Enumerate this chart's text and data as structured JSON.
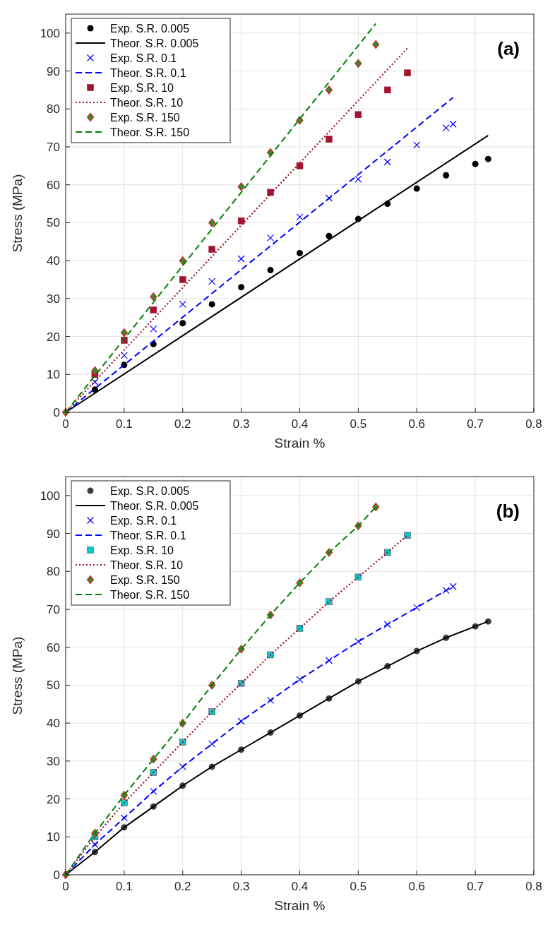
{
  "chart_data": [
    {
      "type": "line",
      "xlabel": "Strain %",
      "ylabel": "Stress (MPa)",
      "xlim": [
        0,
        0.8
      ],
      "ylim": [
        0,
        105
      ],
      "xticks": [
        0,
        0.1,
        0.2,
        0.3,
        0.4,
        0.5,
        0.6,
        0.7,
        0.8
      ],
      "yticks": [
        0,
        10,
        20,
        30,
        40,
        50,
        60,
        70,
        80,
        90,
        100
      ],
      "grid": true,
      "legend": "top left",
      "annotations": [
        "(a)"
      ],
      "series": [
        {
          "name": "Exp. S.R. 0.005",
          "type": "scatter",
          "marker": "circle",
          "color": "#000000",
          "x": [
            0.05,
            0.1,
            0.15,
            0.2,
            0.25,
            0.3,
            0.35,
            0.4,
            0.45,
            0.5,
            0.55,
            0.6,
            0.65,
            0.7,
            0.722
          ],
          "values": [
            6,
            12.5,
            18,
            23.5,
            28.5,
            33,
            37.5,
            42,
            46.5,
            51,
            55,
            59,
            62.5,
            65.5,
            66.8
          ]
        },
        {
          "name": "Theor. S.R. 0.005",
          "type": "line",
          "line_style": "solid",
          "color": "#000000",
          "x": [
            0,
            0.722
          ],
          "values": [
            0,
            73
          ]
        },
        {
          "name": "Exp. S.R. 0.1",
          "type": "scatter",
          "marker": "cross",
          "color": "#0000ff",
          "x": [
            0.05,
            0.1,
            0.15,
            0.2,
            0.25,
            0.3,
            0.35,
            0.4,
            0.45,
            0.5,
            0.55,
            0.6,
            0.65,
            0.662
          ],
          "values": [
            8,
            15,
            22,
            28.5,
            34.5,
            40.5,
            46,
            51.5,
            56.5,
            61.5,
            66,
            70.5,
            75,
            76
          ]
        },
        {
          "name": "Theor. S.R. 0.1",
          "type": "line",
          "line_style": "dashed",
          "color": "#0000ff",
          "x": [
            0,
            0.662
          ],
          "values": [
            0,
            83
          ]
        },
        {
          "name": "Exp. S.R. 10",
          "type": "scatter",
          "marker": "square",
          "color": "#a2142f",
          "x": [
            0.05,
            0.1,
            0.15,
            0.2,
            0.25,
            0.3,
            0.35,
            0.4,
            0.45,
            0.5,
            0.55,
            0.584
          ],
          "values": [
            10,
            19,
            27,
            35,
            43,
            50.5,
            58,
            65,
            72,
            78.5,
            85,
            89.5
          ]
        },
        {
          "name": "Theor. S.R. 10",
          "type": "line",
          "line_style": "dotted",
          "color": "#a2142f",
          "x": [
            0,
            0.584
          ],
          "values": [
            0,
            96
          ]
        },
        {
          "name": "Exp. S.R. 150",
          "type": "scatter",
          "marker": "diamond",
          "color": "#2e8b2e",
          "x": [
            0,
            0.05,
            0.1,
            0.15,
            0.2,
            0.25,
            0.3,
            0.35,
            0.4,
            0.45,
            0.5,
            0.53
          ],
          "values": [
            0,
            11,
            21,
            30.5,
            40,
            50,
            59.5,
            68.5,
            77,
            85,
            92,
            97
          ]
        },
        {
          "name": "Theor. S.R. 150",
          "type": "line",
          "line_style": "dashed",
          "color": "#008000",
          "x": [
            0,
            0.53
          ],
          "values": [
            0,
            102.5
          ]
        }
      ]
    },
    {
      "type": "line",
      "xlabel": "Strain %",
      "ylabel": "Stress (MPa)",
      "xlim": [
        0,
        0.8
      ],
      "ylim": [
        0,
        105
      ],
      "xticks": [
        0,
        0.1,
        0.2,
        0.3,
        0.4,
        0.5,
        0.6,
        0.7,
        0.8
      ],
      "yticks": [
        0,
        10,
        20,
        30,
        40,
        50,
        60,
        70,
        80,
        90,
        100
      ],
      "grid": true,
      "legend": "top left",
      "annotations": [
        "(b)"
      ],
      "series": [
        {
          "name": "Exp. S.R. 0.005",
          "type": "scatter",
          "marker": "circle",
          "color": "#404040",
          "x": [
            0.05,
            0.1,
            0.15,
            0.2,
            0.25,
            0.3,
            0.35,
            0.4,
            0.45,
            0.5,
            0.55,
            0.6,
            0.65,
            0.7,
            0.722
          ],
          "values": [
            6,
            12.5,
            18,
            23.5,
            28.5,
            33,
            37.5,
            42,
            46.5,
            51,
            55,
            59,
            62.5,
            65.5,
            66.8
          ]
        },
        {
          "name": "Theor. S.R. 0.005",
          "type": "line",
          "line_style": "solid",
          "color": "#000000",
          "x": [
            0,
            0.05,
            0.1,
            0.15,
            0.2,
            0.25,
            0.3,
            0.35,
            0.4,
            0.45,
            0.5,
            0.55,
            0.6,
            0.65,
            0.7,
            0.722
          ],
          "values": [
            0,
            6,
            12.5,
            18,
            23.5,
            28.5,
            33,
            37.5,
            42,
            46.5,
            51,
            55,
            59,
            62.5,
            65.5,
            66.8
          ]
        },
        {
          "name": "Exp. S.R. 0.1",
          "type": "scatter",
          "marker": "cross",
          "color": "#0000ff",
          "x": [
            0.05,
            0.1,
            0.15,
            0.2,
            0.25,
            0.3,
            0.35,
            0.4,
            0.45,
            0.5,
            0.55,
            0.6,
            0.65,
            0.662
          ],
          "values": [
            8,
            15,
            22,
            28.5,
            34.5,
            40.5,
            46,
            51.5,
            56.5,
            61.5,
            66,
            70.5,
            75,
            76
          ]
        },
        {
          "name": "Theor. S.R. 0.1",
          "type": "line",
          "line_style": "dashed",
          "color": "#0000ff",
          "x": [
            0,
            0.05,
            0.1,
            0.15,
            0.2,
            0.25,
            0.3,
            0.35,
            0.4,
            0.45,
            0.5,
            0.55,
            0.6,
            0.65,
            0.662
          ],
          "values": [
            0,
            8,
            15,
            22,
            28.5,
            34.5,
            40.5,
            46,
            51.5,
            56.5,
            61.5,
            66,
            70.5,
            75,
            76
          ]
        },
        {
          "name": "Exp. S.R. 10",
          "type": "scatter",
          "marker": "square",
          "color": "#00cccc",
          "x": [
            0.05,
            0.1,
            0.15,
            0.2,
            0.25,
            0.3,
            0.35,
            0.4,
            0.45,
            0.5,
            0.55,
            0.584
          ],
          "values": [
            10,
            19,
            27,
            35,
            43,
            50.5,
            58,
            65,
            72,
            78.5,
            85,
            89.5
          ]
        },
        {
          "name": "Theor. S.R. 10",
          "type": "line",
          "line_style": "dotted",
          "color": "#a2142f",
          "x": [
            0,
            0.05,
            0.1,
            0.15,
            0.2,
            0.25,
            0.3,
            0.35,
            0.4,
            0.45,
            0.5,
            0.55,
            0.584
          ],
          "values": [
            0,
            10,
            19,
            27,
            35,
            43,
            50.5,
            58,
            65,
            72,
            78.5,
            85,
            89.5
          ]
        },
        {
          "name": "Exp. S.R. 150",
          "type": "scatter",
          "marker": "diamond",
          "color": "#2e8b2e",
          "x": [
            0,
            0.05,
            0.1,
            0.15,
            0.2,
            0.25,
            0.3,
            0.35,
            0.4,
            0.45,
            0.5,
            0.53
          ],
          "values": [
            0,
            11,
            21,
            30.5,
            40,
            50,
            59.5,
            68.5,
            77,
            85,
            92,
            97
          ]
        },
        {
          "name": "Theor. S.R. 150",
          "type": "line",
          "line_style": "dashed",
          "color": "#008000",
          "x": [
            0,
            0.05,
            0.1,
            0.15,
            0.2,
            0.25,
            0.3,
            0.35,
            0.4,
            0.45,
            0.5,
            0.53
          ],
          "values": [
            0,
            11,
            21,
            30.5,
            40,
            50,
            59.5,
            68.5,
            77,
            85,
            92,
            97
          ]
        }
      ]
    }
  ]
}
